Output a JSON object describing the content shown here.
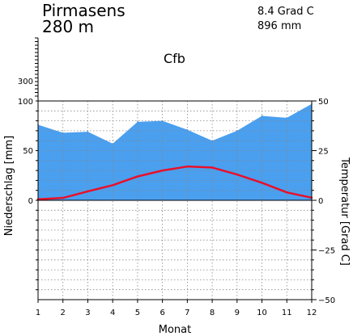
{
  "station": {
    "name": "Pirmasens",
    "elevation": "280 m",
    "mean_temp": "8.4 Grad C",
    "annual_precip": "896 mm",
    "climate_class": "Cfb"
  },
  "chart_data": {
    "type": "area",
    "xlabel": "Monat",
    "ylabel_left": "Niederschlag [mm]",
    "ylabel_right": "Temperatur [Grad C]",
    "x": [
      1,
      2,
      3,
      4,
      5,
      6,
      7,
      8,
      9,
      10,
      11,
      12
    ],
    "x_tick_labels": [
      "1",
      "2",
      "3",
      "4",
      "5",
      "6",
      "7",
      "8",
      "9",
      "10",
      "11",
      "12"
    ],
    "precip_ticks": [
      "300",
      "100",
      "50",
      "0"
    ],
    "temp_ticks": [
      "50",
      "25",
      "0",
      "−25",
      "−50"
    ],
    "ylim_precip": [
      0,
      100
    ],
    "ylim_temp": [
      -50,
      50
    ],
    "grid": true,
    "series": [
      {
        "name": "Niederschlag",
        "unit": "mm",
        "color": "#4a9fef",
        "values": [
          76,
          68,
          69,
          57,
          79,
          80,
          71,
          60,
          70,
          85,
          83,
          97
        ]
      },
      {
        "name": "Temperatur",
        "unit": "Grad C",
        "color": "#e8102a",
        "values": [
          0.5,
          1.2,
          4.5,
          7.6,
          12,
          15,
          17,
          16.5,
          13,
          8.8,
          4,
          1.3
        ]
      }
    ]
  }
}
